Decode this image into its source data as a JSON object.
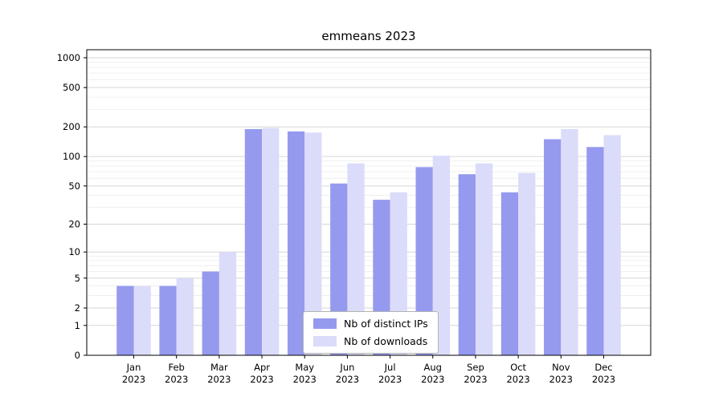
{
  "title": "emmeans 2023",
  "chart_data": {
    "type": "bar",
    "title": "emmeans 2023",
    "scale": "log1p",
    "grid": true,
    "legend_position": "lower center",
    "categories": [
      "Jan",
      "Feb",
      "Mar",
      "Apr",
      "May",
      "Jun",
      "Jul",
      "Aug",
      "Sep",
      "Oct",
      "Nov",
      "Dec"
    ],
    "year_label": "2023",
    "series": [
      {
        "name": "Nb of distinct IPs",
        "color": "#959aee",
        "values": [
          4,
          4,
          6,
          190,
          180,
          53,
          36,
          78,
          66,
          43,
          150,
          125
        ]
      },
      {
        "name": "Nb of downloads",
        "color": "#dadcf9",
        "values": [
          4,
          5,
          10,
          195,
          175,
          85,
          43,
          102,
          85,
          68,
          190,
          165
        ]
      }
    ],
    "yticks": [
      0,
      1,
      2,
      5,
      10,
      20,
      50,
      100,
      200,
      500,
      1000
    ],
    "yticks_minor": [
      3,
      4,
      6,
      7,
      8,
      9,
      30,
      40,
      60,
      70,
      80,
      90,
      300,
      400,
      600,
      700,
      800,
      900
    ],
    "ylim": [
      0,
      1000
    ]
  },
  "colors": {
    "ips": "#959aee",
    "downloads": "#dadcf9",
    "grid_major": "#d6d6d6",
    "grid_minor": "#ebebeb",
    "axis": "#000000",
    "legend_border": "#b3b3b3",
    "background": "#ffffff"
  }
}
